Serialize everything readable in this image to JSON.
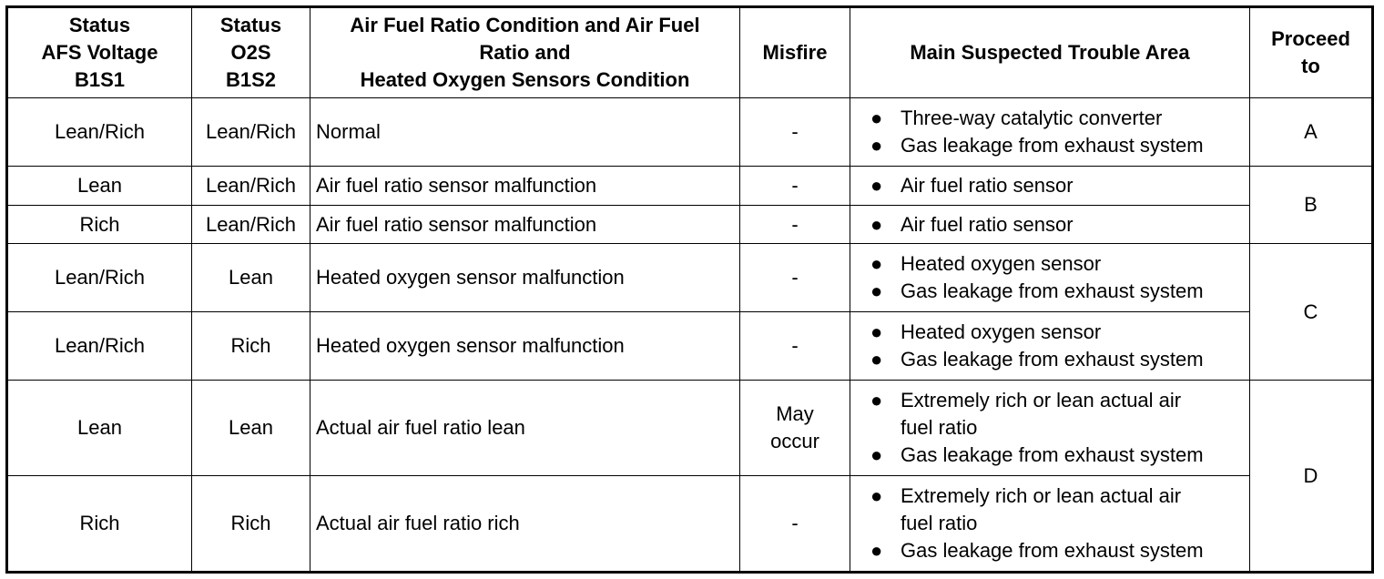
{
  "headers": [
    "Status\nAFS Voltage\nB1S1",
    "Status\nO2S\nB1S2",
    "Air Fuel Ratio Condition and Air Fuel\nRatio and\nHeated Oxygen Sensors Condition",
    "Misfire",
    "Main Suspected Trouble Area",
    "Proceed\nto"
  ],
  "bullet_icon": "●",
  "rows": [
    {
      "afs": "Lean/Rich",
      "o2s": "Lean/Rich",
      "condition": "Normal",
      "misfire": "-",
      "areas": [
        "Three-way catalytic converter",
        "Gas leakage from exhaust system"
      ],
      "proceed": "A",
      "span": 1
    },
    {
      "afs": "Lean",
      "o2s": "Lean/Rich",
      "condition": "Air fuel ratio sensor malfunction",
      "misfire": "-",
      "areas": [
        "Air fuel ratio sensor"
      ],
      "proceed": "B",
      "span": 2
    },
    {
      "afs": "Rich",
      "o2s": "Lean/Rich",
      "condition": "Air fuel ratio sensor malfunction",
      "misfire": "-",
      "areas": [
        "Air fuel ratio sensor"
      ]
    },
    {
      "afs": "Lean/Rich",
      "o2s": "Lean",
      "condition": "Heated oxygen sensor malfunction",
      "misfire": "-",
      "areas": [
        "Heated oxygen sensor",
        "Gas leakage from exhaust system"
      ],
      "proceed": "C",
      "span": 2
    },
    {
      "afs": "Lean/Rich",
      "o2s": "Rich",
      "condition": "Heated oxygen sensor malfunction",
      "misfire": "-",
      "areas": [
        "Heated oxygen sensor",
        "Gas leakage from exhaust system"
      ]
    },
    {
      "afs": "Lean",
      "o2s": "Lean",
      "condition": "Actual air fuel ratio lean",
      "misfire": "May\noccur",
      "areas": [
        "Extremely rich or lean actual air\nfuel ratio",
        "Gas leakage from exhaust system"
      ],
      "proceed": "D",
      "span": 2
    },
    {
      "afs": "Rich",
      "o2s": "Rich",
      "condition": "Actual air fuel ratio rich",
      "misfire": "-",
      "areas": [
        "Extremely rich or lean actual air\nfuel ratio",
        "Gas leakage from exhaust system"
      ]
    }
  ]
}
